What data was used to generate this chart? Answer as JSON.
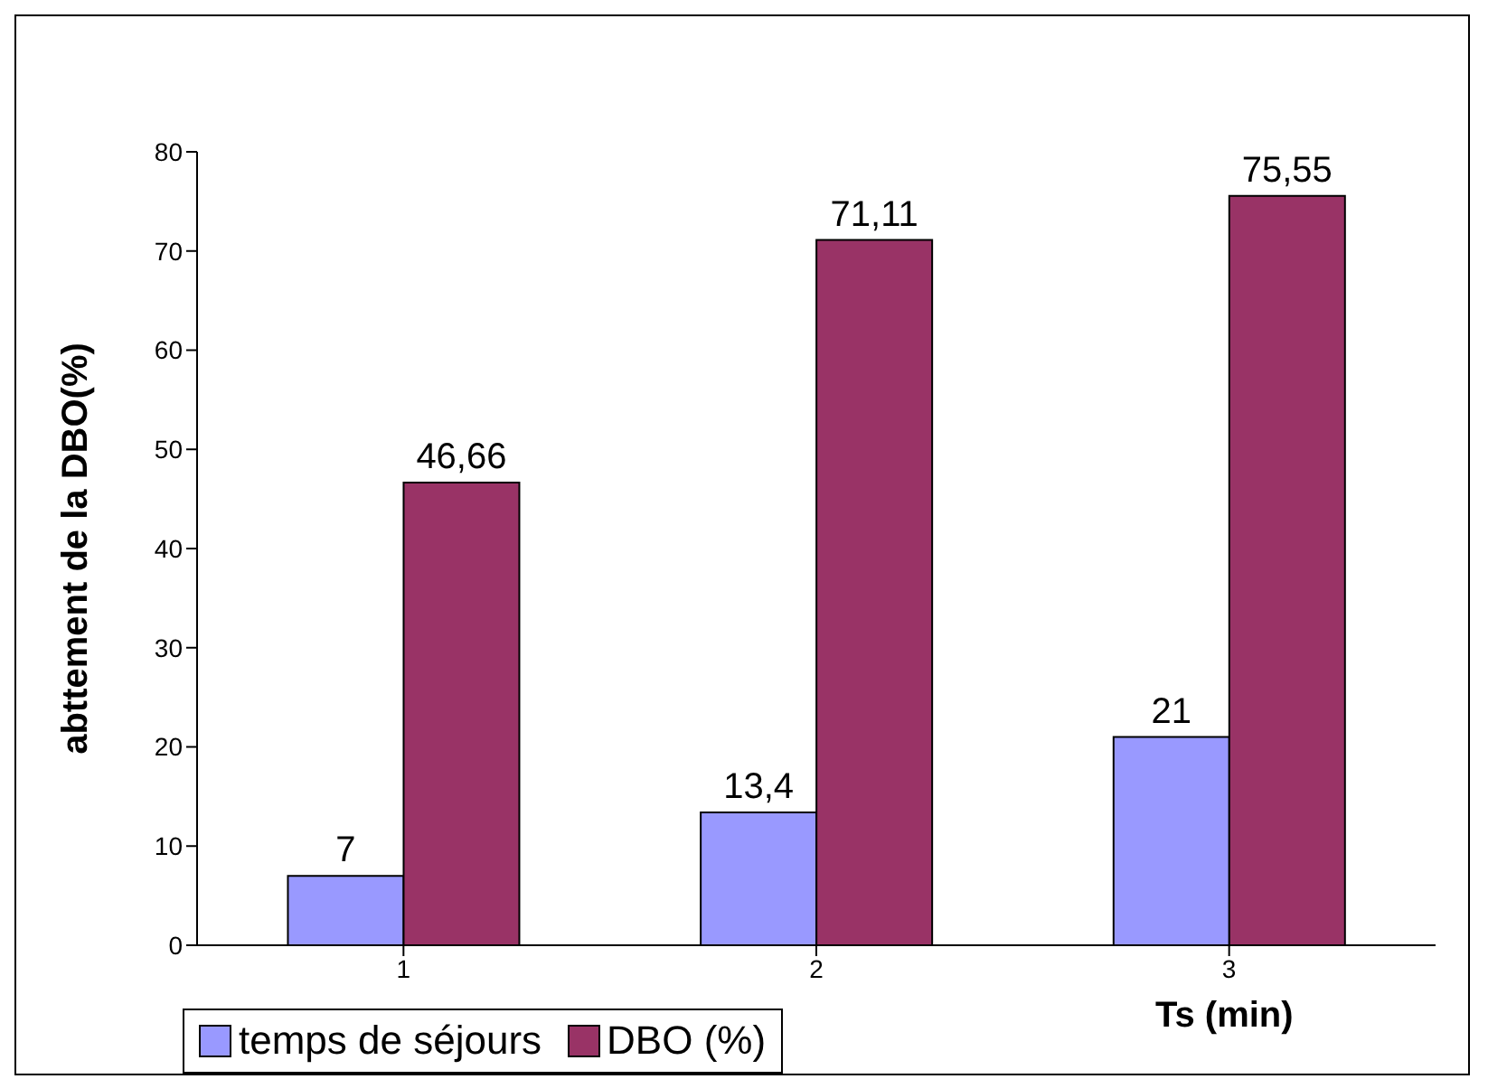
{
  "chart_data": {
    "type": "bar",
    "xlabel": "Ts (min)",
    "ylabel": "abttement de la DBO(%)",
    "categories": [
      "1",
      "2",
      "3"
    ],
    "series": [
      {
        "name": "temps de séjours",
        "color": "#9999ff",
        "values": [
          7,
          13.4,
          21
        ],
        "value_labels": [
          "7",
          "13,4",
          "21"
        ]
      },
      {
        "name": "DBO (%)",
        "color": "#993366",
        "values": [
          46.66,
          71.11,
          75.55
        ],
        "value_labels": [
          "46,66",
          "71,11",
          "75,55"
        ]
      }
    ],
    "ylim": [
      0,
      80
    ],
    "yticks": [
      0,
      10,
      20,
      30,
      40,
      50,
      60,
      70,
      80
    ],
    "grid": false,
    "legend": "bottom left"
  }
}
